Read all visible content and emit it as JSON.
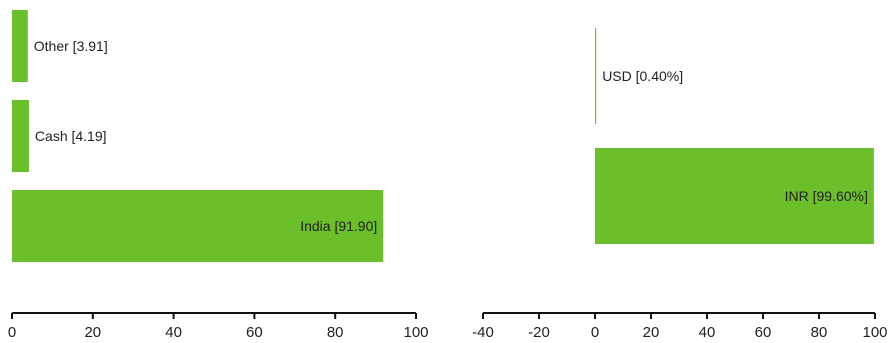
{
  "chart_data": [
    {
      "type": "bar",
      "orientation": "horizontal",
      "categories": [
        "Other",
        "Cash",
        "India"
      ],
      "values": [
        3.91,
        4.19,
        91.9
      ],
      "data_labels": [
        "Other [3.91]",
        "Cash [4.19]",
        "India [91.90]"
      ],
      "xlim": [
        0,
        100
      ],
      "ticks": [
        "0",
        "20",
        "40",
        "60",
        "80",
        "100"
      ],
      "tick_values": [
        0,
        20,
        40,
        60,
        80,
        100
      ],
      "bar_color": "#6abf2a",
      "grid": false,
      "legend": "none"
    },
    {
      "type": "bar",
      "orientation": "horizontal",
      "categories": [
        "USD",
        "INR"
      ],
      "values": [
        0.4,
        99.6
      ],
      "data_labels": [
        "USD [0.40%]",
        "INR [99.60%]"
      ],
      "xlim": [
        -40,
        100
      ],
      "ticks": [
        "-40",
        "-20",
        "0",
        "20",
        "40",
        "60",
        "80",
        "100"
      ],
      "tick_values": [
        -40,
        -20,
        0,
        20,
        40,
        60,
        80,
        100
      ],
      "bar_color": "#6abf2a",
      "grid": false,
      "legend": "none"
    }
  ]
}
